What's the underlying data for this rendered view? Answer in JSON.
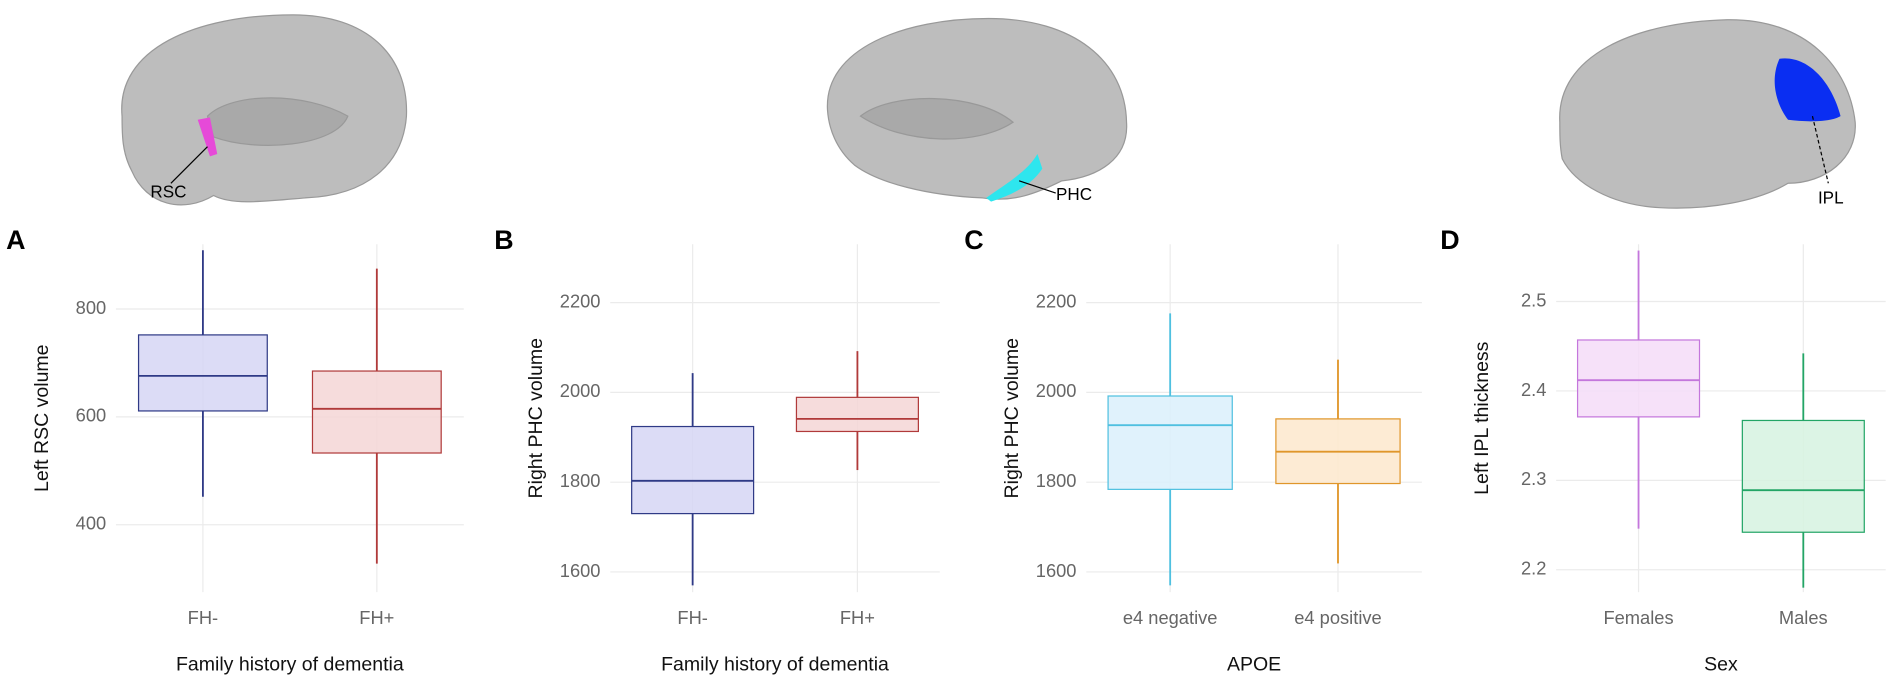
{
  "chart_data": [
    {
      "type": "box",
      "label": "A",
      "annotation": "RSC",
      "ylabel": "Left RSC volume",
      "xlabel": "Family history of dementia",
      "categories": [
        "FH-",
        "FH+"
      ],
      "ylim": [
        275,
        920
      ],
      "yticks": [
        400,
        600,
        800
      ],
      "grid": true,
      "boxes": [
        {
          "color": "#2f3a86",
          "fill": "#d6d6f5",
          "whisker_low": 452,
          "q1": 611,
          "median": 676,
          "q3": 752,
          "whisker_high": 909
        },
        {
          "color": "#b03a3a",
          "fill": "#f5d6d6",
          "whisker_low": 328,
          "q1": 533,
          "median": 615,
          "q3": 685,
          "whisker_high": 875
        }
      ]
    },
    {
      "type": "box",
      "label": "B",
      "annotation": "PHC",
      "ylabel": "Right PHC volume",
      "xlabel": "Family history of dementia",
      "categories": [
        "FH-",
        "FH+"
      ],
      "ylim": [
        1555,
        2330
      ],
      "yticks": [
        1600,
        1800,
        2000,
        2200
      ],
      "grid": true,
      "boxes": [
        {
          "color": "#2f3a86",
          "fill": "#d6d6f5",
          "whisker_low": 1570,
          "q1": 1730,
          "median": 1803,
          "q3": 1924,
          "whisker_high": 2043
        },
        {
          "color": "#b03a3a",
          "fill": "#f5d6d6",
          "whisker_low": 1827,
          "q1": 1913,
          "median": 1941,
          "q3": 1989,
          "whisker_high": 2092
        }
      ]
    },
    {
      "type": "box",
      "label": "C",
      "ylabel": "Right PHC volume",
      "xlabel": "APOE",
      "categories": [
        "e4 negative",
        "e4 positive"
      ],
      "ylim": [
        1555,
        2330
      ],
      "yticks": [
        1600,
        1800,
        2000,
        2200
      ],
      "grid": true,
      "boxes": [
        {
          "color": "#4fc0e0",
          "fill": "#dbf0fc",
          "whisker_low": 1570,
          "q1": 1784,
          "median": 1927,
          "q3": 1992,
          "whisker_high": 2176
        },
        {
          "color": "#e0962a",
          "fill": "#fde8cd",
          "whisker_low": 1619,
          "q1": 1797,
          "median": 1868,
          "q3": 1941,
          "whisker_high": 2073
        }
      ]
    },
    {
      "type": "box",
      "label": "D",
      "annotation": "IPL",
      "ylabel": "Left IPL thickness",
      "xlabel": "Sex",
      "categories": [
        "Females",
        "Males"
      ],
      "ylim": [
        2.175,
        2.564
      ],
      "yticks": [
        2.2,
        2.3,
        2.4,
        2.5
      ],
      "grid": true,
      "boxes": [
        {
          "color": "#c477dc",
          "fill": "#f5dcf8",
          "whisker_low": 2.246,
          "q1": 2.371,
          "median": 2.412,
          "q3": 2.457,
          "whisker_high": 2.557
        },
        {
          "color": "#23a566",
          "fill": "#d6f2e1",
          "whisker_low": 2.18,
          "q1": 2.242,
          "median": 2.289,
          "q3": 2.367,
          "whisker_high": 2.442
        }
      ]
    }
  ]
}
